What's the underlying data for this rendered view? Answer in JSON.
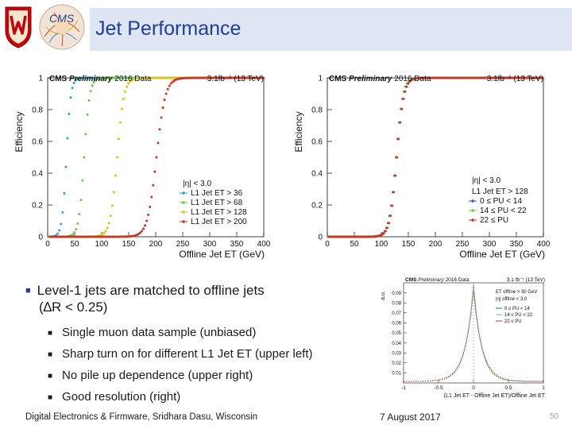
{
  "slide": {
    "title": "Jet Performance",
    "bullet_main": "Level-1 jets are matched to offline jets",
    "bullet_main_cont": "(∆R < 0.25)",
    "sub_bullets": [
      "Single muon data sample (unbiased)",
      "Sharp turn on for different L1 Jet ET (upper left)",
      "No pile up dependence (upper right)",
      "Good resolution (right)"
    ],
    "footer_left": "Digital Electronics & Firmware, Sridhara Dasu, Wisconsin",
    "footer_date": "7 August 2017",
    "page_number": "50",
    "title_color": "#1f3d99",
    "title_bg": "#dfe6f3",
    "logos": {
      "left": "uw-crest-icon",
      "right": "cms-logo-icon"
    }
  },
  "chart_data": [
    {
      "type": "scatter",
      "title": "CMS Preliminary 2016 Data",
      "lumi": "3.1fb⁻¹ (13 TeV)",
      "xlabel": "Offline Jet ET (GeV)",
      "ylabel": "Efficiency",
      "xlim": [
        0,
        400
      ],
      "ylim": [
        0,
        1
      ],
      "xticks": [
        "0",
        "50",
        "100",
        "150",
        "200",
        "250",
        "300",
        "350",
        "400"
      ],
      "yticks": [
        "0",
        "0.2",
        "0.4",
        "0.6",
        "0.8",
        "1"
      ],
      "legend_header": "|η| < 3.0",
      "series": [
        {
          "name": "L1 Jet ET > 36",
          "threshold": 36,
          "width": 9,
          "color": "#2aa6d0"
        },
        {
          "name": "L1 Jet ET > 68",
          "threshold": 68,
          "width": 11,
          "color": "#6cc84a"
        },
        {
          "name": "L1 Jet ET > 128",
          "threshold": 128,
          "width": 14,
          "color": "#e0c020"
        },
        {
          "name": "L1 Jet ET > 200",
          "threshold": 200,
          "width": 18,
          "color": "#cc3322"
        }
      ]
    },
    {
      "type": "scatter",
      "title": "CMS Preliminary 2016 Data",
      "lumi": "3.1fb⁻¹ (13 TeV)",
      "xlabel": "Offline Jet ET (GeV)",
      "ylabel": "Efficiency",
      "xlim": [
        0,
        400
      ],
      "ylim": [
        0,
        1
      ],
      "xticks": [
        "0",
        "50",
        "100",
        "150",
        "200",
        "250",
        "300",
        "350",
        "400"
      ],
      "yticks": [
        "0",
        "0.2",
        "0.4",
        "0.6",
        "0.8",
        "1"
      ],
      "legend_header": "|η| < 3.0",
      "legend_sub": "L1 Jet ET > 128",
      "series": [
        {
          "name": "0 ≤ PU < 14",
          "threshold": 128,
          "width": 14,
          "color": "#2a5fb0"
        },
        {
          "name": "14 ≤ PU < 22",
          "threshold": 128,
          "width": 14,
          "color": "#6cc84a"
        },
        {
          "name": "22 ≤ PU",
          "threshold": 128,
          "width": 14,
          "color": "#cc3322"
        }
      ]
    },
    {
      "type": "line",
      "title": "CMS Preliminary 2016 Data",
      "lumi": "3.1 fb⁻¹ (13 TeV)",
      "xlabel": "(L1 Jet ET - Offline Jet ET)/Offline Jet ET",
      "ylabel": "a.u.",
      "xlim": [
        -1,
        1
      ],
      "ylim": [
        0,
        0.1
      ],
      "xticks": [
        "-1",
        "-0.5",
        "0",
        "0.5",
        "1"
      ],
      "yticks": [
        "0.01",
        "0.02",
        "0.03",
        "0.04",
        "0.05",
        "0.06",
        "0.07",
        "0.08",
        "0.09"
      ],
      "legend_header_1": "ET offline > 30 GeV",
      "legend_header_2": "|η| offline < 3.0",
      "series": [
        {
          "name": "0 ≤ PU < 14",
          "color": "#2a5fb0",
          "peak": 0.097,
          "mean": 0.0,
          "sigma": 0.18
        },
        {
          "name": "14 ≤ PU < 22",
          "color": "#6cc84a",
          "peak": 0.093,
          "mean": 0.0,
          "sigma": 0.19
        },
        {
          "name": "22 ≤ PU",
          "color": "#cc3322",
          "peak": 0.09,
          "mean": 0.0,
          "sigma": 0.2
        }
      ]
    }
  ]
}
